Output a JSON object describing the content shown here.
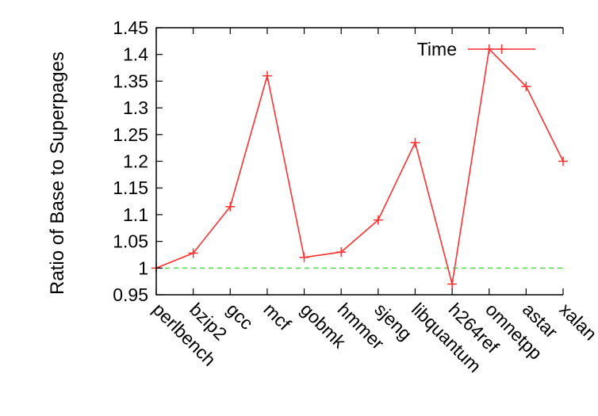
{
  "chart_data": {
    "type": "line",
    "ylabel": "Ratio of Base to Superpages",
    "xlabel": "",
    "ylim": [
      0.95,
      1.45
    ],
    "yticks": [
      "0.95",
      "1",
      "1.05",
      "1.1",
      "1.15",
      "1.2",
      "1.25",
      "1.3",
      "1.35",
      "1.4",
      "1.45"
    ],
    "categories": [
      "perlbench",
      "bzip2",
      "gcc",
      "mcf",
      "gobmk",
      "hmmer",
      "sjeng",
      "libquantum",
      "h264ref",
      "omnetpp",
      "astar",
      "xalan"
    ],
    "series": [
      {
        "name": "Time",
        "color": "#ff3030",
        "marker": "plus",
        "values": [
          1.0,
          1.028,
          1.115,
          1.36,
          1.02,
          1.03,
          1.09,
          1.235,
          0.97,
          1.41,
          1.34,
          1.2
        ]
      }
    ],
    "reference_line": {
      "y": 1.0,
      "color": "#44dd44",
      "style": "dashed"
    },
    "legend_position": "top-right",
    "grid": false
  }
}
